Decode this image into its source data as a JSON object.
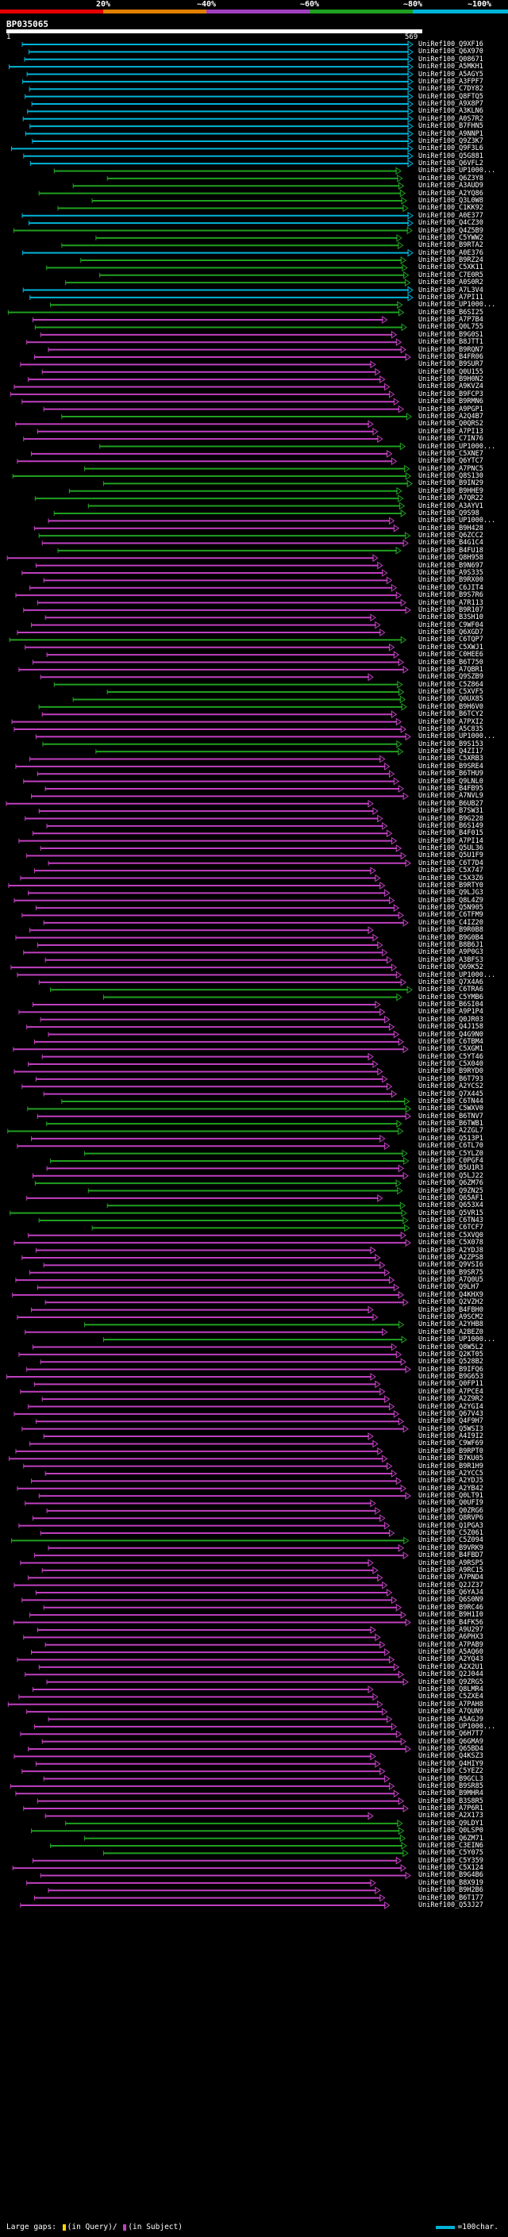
{
  "scale": {
    "labels": [
      "20%",
      "~40%",
      "~60%",
      "~80%",
      "~100%"
    ],
    "colors": [
      "#e60000",
      "#e08000",
      "#a040c0",
      "#20a020",
      "#00b4d8"
    ]
  },
  "query": {
    "id": "BP035065",
    "start": "1",
    "end": "569"
  },
  "colors": {
    "cyan": "#00b4d8",
    "green": "#20a020",
    "magenta": "#c040c0"
  },
  "hits": [
    {
      "l": "UniRef100_Q9XF16",
      "c": "c"
    },
    {
      "l": "UniRef100_Q6X970",
      "c": "c"
    },
    {
      "l": "UniRef100_Q08671",
      "c": "c"
    },
    {
      "l": "UniRef100_A5MKH1",
      "c": "c"
    },
    {
      "l": "UniRef100_A5AGY5",
      "c": "c"
    },
    {
      "l": "UniRef100_A3FPF7",
      "c": "c"
    },
    {
      "l": "UniRef100_C7DY82",
      "c": "c"
    },
    {
      "l": "UniRef100_Q8FTQ5",
      "c": "c"
    },
    {
      "l": "UniRef100_A9X8P7",
      "c": "c"
    },
    {
      "l": "UniRef100_A3KLN6",
      "c": "c"
    },
    {
      "l": "UniRef100_A0S7R2",
      "c": "c"
    },
    {
      "l": "UniRef100_B7FHN5",
      "c": "c"
    },
    {
      "l": "UniRef100_A9NNP1",
      "c": "c"
    },
    {
      "l": "UniRef100_Q9Z3K7",
      "c": "c"
    },
    {
      "l": "UniRef100_Q9F3L6",
      "c": "c"
    },
    {
      "l": "UniRef100_Q5G881",
      "c": "c"
    },
    {
      "l": "UniRef100_Q6VFL2",
      "c": "c"
    },
    {
      "l": "UniRef100_UP1000...",
      "c": "g"
    },
    {
      "l": "UniRef100_Q6Z3Y8",
      "c": "g"
    },
    {
      "l": "UniRef100_A3AUD9",
      "c": "g"
    },
    {
      "l": "UniRef100_A2YQ86",
      "c": "g"
    },
    {
      "l": "UniRef100_Q3L0W8",
      "c": "g"
    },
    {
      "l": "UniRef100_C1KK92",
      "c": "g"
    },
    {
      "l": "UniRef100_A0E377",
      "c": "c"
    },
    {
      "l": "UniRef100_Q4CZ30",
      "c": "c"
    },
    {
      "l": "UniRef100_Q4Z5B9",
      "c": "g"
    },
    {
      "l": "UniRef100_C5YWW2",
      "c": "g"
    },
    {
      "l": "UniRef100_B9RTA2",
      "c": "g"
    },
    {
      "l": "UniRef100_A0E376",
      "c": "c"
    },
    {
      "l": "UniRef100_B9RZ24",
      "c": "g"
    },
    {
      "l": "UniRef100_C5XK11",
      "c": "g"
    },
    {
      "l": "UniRef100_C7E0R5",
      "c": "g"
    },
    {
      "l": "UniRef100_A0S0R2",
      "c": "g"
    },
    {
      "l": "UniRef100_A7L3V4",
      "c": "c"
    },
    {
      "l": "UniRef100_A7PI11",
      "c": "c"
    },
    {
      "l": "UniRef100_UP1000...",
      "c": "g"
    },
    {
      "l": "UniRef100_B6SI25",
      "c": "g"
    },
    {
      "l": "UniRef100_A7P7B4",
      "c": "m"
    },
    {
      "l": "UniRef100_Q0L755",
      "c": "g"
    },
    {
      "l": "UniRef100_B9G0S1",
      "c": "m"
    },
    {
      "l": "UniRef100_B8JTT1",
      "c": "m"
    },
    {
      "l": "UniRef100_B9RQN7",
      "c": "m"
    },
    {
      "l": "UniRef100_B4FR06",
      "c": "m"
    },
    {
      "l": "UniRef100_B9SUR7",
      "c": "m"
    },
    {
      "l": "UniRef100_Q0U155",
      "c": "m"
    },
    {
      "l": "UniRef100_B9H0N2",
      "c": "m"
    },
    {
      "l": "UniRef100_A9KVZ4",
      "c": "m"
    },
    {
      "l": "UniRef100_B9FCP3",
      "c": "m"
    },
    {
      "l": "UniRef100_B9RMN6",
      "c": "m"
    },
    {
      "l": "UniRef100_A9PGP1",
      "c": "m"
    },
    {
      "l": "UniRef100_A2Q4B7",
      "c": "g"
    },
    {
      "l": "UniRef100_Q0QRS2",
      "c": "m"
    },
    {
      "l": "UniRef100_A7PI13",
      "c": "m"
    },
    {
      "l": "UniRef100_C7IN76",
      "c": "m"
    },
    {
      "l": "UniRef100_UP1000...",
      "c": "g"
    },
    {
      "l": "UniRef100_C5XNE7",
      "c": "m"
    },
    {
      "l": "UniRef100_Q6YTC7",
      "c": "m"
    },
    {
      "l": "UniRef100_A7PNC5",
      "c": "g"
    },
    {
      "l": "UniRef100_Q8S130",
      "c": "g"
    },
    {
      "l": "UniRef100_B9IN29",
      "c": "g"
    },
    {
      "l": "UniRef100_B9HHE9",
      "c": "g"
    },
    {
      "l": "UniRef100_A7QR22",
      "c": "g"
    },
    {
      "l": "UniRef100_A3AYV1",
      "c": "g"
    },
    {
      "l": "UniRef100_Q9S98",
      "c": "g"
    },
    {
      "l": "UniRef100_UP1000...",
      "c": "m"
    },
    {
      "l": "UniRef100_B9H428",
      "c": "m"
    },
    {
      "l": "UniRef100_Q6ZCC2",
      "c": "g"
    },
    {
      "l": "UniRef100_B4G1C4",
      "c": "m"
    },
    {
      "l": "UniRef100_B4FU18",
      "c": "g"
    },
    {
      "l": "UniRef100_Q8H958",
      "c": "m"
    },
    {
      "l": "UniRef100_B9N697",
      "c": "m"
    },
    {
      "l": "UniRef100_A9S335",
      "c": "m"
    },
    {
      "l": "UniRef100_B9RX00",
      "c": "m"
    },
    {
      "l": "UniRef100_C6JIT4",
      "c": "m"
    },
    {
      "l": "UniRef100_B9S7R6",
      "c": "m"
    },
    {
      "l": "UniRef100_A7R113",
      "c": "m"
    },
    {
      "l": "UniRef100_B9R107",
      "c": "m"
    },
    {
      "l": "UniRef100_B3SH10",
      "c": "m"
    },
    {
      "l": "UniRef100_C9WF04",
      "c": "m"
    },
    {
      "l": "UniRef100_Q6XGD7",
      "c": "m"
    },
    {
      "l": "UniRef100_C6TQP7",
      "c": "g"
    },
    {
      "l": "UniRef100_C5XWJ1",
      "c": "m"
    },
    {
      "l": "UniRef100_C0HEE6",
      "c": "m"
    },
    {
      "l": "UniRef100_B6T750",
      "c": "m"
    },
    {
      "l": "UniRef100_A7QBR1",
      "c": "m"
    },
    {
      "l": "UniRef100_Q9SZB9",
      "c": "m"
    },
    {
      "l": "UniRef100_C5Z864",
      "c": "g"
    },
    {
      "l": "UniRef100_C5XVF5",
      "c": "g"
    },
    {
      "l": "UniRef100_Q0UX85",
      "c": "g"
    },
    {
      "l": "UniRef100_B9H6V0",
      "c": "g"
    },
    {
      "l": "UniRef100_B6TCY2",
      "c": "m"
    },
    {
      "l": "UniRef100_A7PXI2",
      "c": "m"
    },
    {
      "l": "UniRef100_A5C835",
      "c": "m"
    },
    {
      "l": "UniRef100_UP1000...",
      "c": "m"
    },
    {
      "l": "UniRef100_B9S153",
      "c": "g"
    },
    {
      "l": "UniRef100_Q4ZI17",
      "c": "g"
    },
    {
      "l": "UniRef100_C5XRB3",
      "c": "m"
    },
    {
      "l": "UniRef100_B9SRE4",
      "c": "m"
    },
    {
      "l": "UniRef100_B6THU9",
      "c": "m"
    },
    {
      "l": "UniRef100_Q9LNL0",
      "c": "m"
    },
    {
      "l": "UniRef100_B4FB95",
      "c": "m"
    },
    {
      "l": "UniRef100_A7NVL9",
      "c": "m"
    },
    {
      "l": "UniRef100_B6UB27",
      "c": "m"
    },
    {
      "l": "UniRef100_B7SW31",
      "c": "m"
    },
    {
      "l": "UniRef100_B9G228",
      "c": "m"
    },
    {
      "l": "UniRef100_B6S149",
      "c": "m"
    },
    {
      "l": "UniRef100_B4F015",
      "c": "m"
    },
    {
      "l": "UniRef100_A7PI14",
      "c": "m"
    },
    {
      "l": "UniRef100_Q5UL36",
      "c": "m"
    },
    {
      "l": "UniRef100_Q5U1F9",
      "c": "m"
    },
    {
      "l": "UniRef100_C6T7D4",
      "c": "m"
    },
    {
      "l": "UniRef100_C5X747",
      "c": "m"
    },
    {
      "l": "UniRef100_C5X3Z6",
      "c": "m"
    },
    {
      "l": "UniRef100_B9RTY0",
      "c": "m"
    },
    {
      "l": "UniRef100_Q9LJG3",
      "c": "m"
    },
    {
      "l": "UniRef100_Q8L4Z9",
      "c": "m"
    },
    {
      "l": "UniRef100_Q5N905",
      "c": "m"
    },
    {
      "l": "UniRef100_C6TFM9",
      "c": "m"
    },
    {
      "l": "UniRef100_C4IZ20",
      "c": "m"
    },
    {
      "l": "UniRef100_B9R0B8",
      "c": "m"
    },
    {
      "l": "UniRef100_B9G0B4",
      "c": "m"
    },
    {
      "l": "UniRef100_B8B6J1",
      "c": "m"
    },
    {
      "l": "UniRef100_A9P0G3",
      "c": "m"
    },
    {
      "l": "UniRef100_A3BFS3",
      "c": "m"
    },
    {
      "l": "UniRef100_Q69K52",
      "c": "m"
    },
    {
      "l": "UniRef100_UP1000...",
      "c": "m"
    },
    {
      "l": "UniRef100_Q7X4A6",
      "c": "m"
    },
    {
      "l": "UniRef100_C6TRA6",
      "c": "g"
    },
    {
      "l": "UniRef100_C5YMB6",
      "c": "g"
    },
    {
      "l": "UniRef100_B6SI04",
      "c": "m"
    },
    {
      "l": "UniRef100_A9P1P4",
      "c": "m"
    },
    {
      "l": "UniRef100_Q0JR03",
      "c": "m"
    },
    {
      "l": "UniRef100_Q4J158",
      "c": "m"
    },
    {
      "l": "UniRef100_Q4G9N0",
      "c": "m"
    },
    {
      "l": "UniRef100_C6TBM4",
      "c": "m"
    },
    {
      "l": "UniRef100_C5XGM1",
      "c": "m"
    },
    {
      "l": "UniRef100_C5YT46",
      "c": "m"
    },
    {
      "l": "UniRef100_C5X040",
      "c": "m"
    },
    {
      "l": "UniRef100_B9RYD0",
      "c": "m"
    },
    {
      "l": "UniRef100_B6T793",
      "c": "m"
    },
    {
      "l": "UniRef100_A2YCS2",
      "c": "m"
    },
    {
      "l": "UniRef100_Q7X445",
      "c": "m"
    },
    {
      "l": "UniRef100_C6TN44",
      "c": "g"
    },
    {
      "l": "UniRef100_C5WXV0",
      "c": "g"
    },
    {
      "l": "UniRef100_B6TNV7",
      "c": "m"
    },
    {
      "l": "UniRef100_B6TWB1",
      "c": "g"
    },
    {
      "l": "UniRef100_A2ZGL7",
      "c": "g"
    },
    {
      "l": "UniRef100_Q513P1",
      "c": "m"
    },
    {
      "l": "UniRef100_C6TL70",
      "c": "m"
    },
    {
      "l": "UniRef100_C5YLZ0",
      "c": "g"
    },
    {
      "l": "UniRef100_C0PGF4",
      "c": "g"
    },
    {
      "l": "UniRef100_B5U1R3",
      "c": "m"
    },
    {
      "l": "UniRef100_Q5LJ22",
      "c": "m"
    },
    {
      "l": "UniRef100_Q6ZM76",
      "c": "g"
    },
    {
      "l": "UniRef100_Q9ZN25",
      "c": "g"
    },
    {
      "l": "UniRef100_Q65AF1",
      "c": "m"
    },
    {
      "l": "UniRef100_Q653X4",
      "c": "g"
    },
    {
      "l": "UniRef100_Q5VR15",
      "c": "g"
    },
    {
      "l": "UniRef100_C6TN43",
      "c": "g"
    },
    {
      "l": "UniRef100_C6TCF7",
      "c": "g"
    },
    {
      "l": "UniRef100_C5XVQ0",
      "c": "m"
    },
    {
      "l": "UniRef100_C5X078",
      "c": "m"
    },
    {
      "l": "UniRef100_A2YDJ8",
      "c": "m"
    },
    {
      "l": "UniRef100_A2ZPS8",
      "c": "m"
    },
    {
      "l": "UniRef100_Q9VSI6",
      "c": "m"
    },
    {
      "l": "UniRef100_B9SR75",
      "c": "m"
    },
    {
      "l": "UniRef100_A7Q0U5",
      "c": "m"
    },
    {
      "l": "UniRef100_Q9LH7",
      "c": "m"
    },
    {
      "l": "UniRef100_Q4KHX9",
      "c": "m"
    },
    {
      "l": "UniRef100_Q2VZH2",
      "c": "m"
    },
    {
      "l": "UniRef100_B4FBH0",
      "c": "m"
    },
    {
      "l": "UniRef100_A9SCM2",
      "c": "m"
    },
    {
      "l": "UniRef100_A2YHB8",
      "c": "g"
    },
    {
      "l": "UniRef100_A2BEZ0",
      "c": "m"
    },
    {
      "l": "UniRef100_UP1000...",
      "c": "g"
    },
    {
      "l": "UniRef100_Q8W5L2",
      "c": "m"
    },
    {
      "l": "UniRef100_Q2KT05",
      "c": "m"
    },
    {
      "l": "UniRef100_Q528B2",
      "c": "m"
    },
    {
      "l": "UniRef100_B9IFQ6",
      "c": "m"
    },
    {
      "l": "UniRef100_B9G653",
      "c": "m"
    },
    {
      "l": "UniRef100_Q0FP11",
      "c": "m"
    },
    {
      "l": "UniRef100_A7PCE4",
      "c": "m"
    },
    {
      "l": "UniRef100_A2Z9R2",
      "c": "m"
    },
    {
      "l": "UniRef100_A2YGI4",
      "c": "m"
    },
    {
      "l": "UniRef100_Q67V43",
      "c": "m"
    },
    {
      "l": "UniRef100_Q4F9H7",
      "c": "m"
    },
    {
      "l": "UniRef100_Q5WSI3",
      "c": "m"
    },
    {
      "l": "UniRef100_A4I9I2",
      "c": "m"
    },
    {
      "l": "UniRef100_C9WF69",
      "c": "m"
    },
    {
      "l": "UniRef100_B9RPT0",
      "c": "m"
    },
    {
      "l": "UniRef100_B7KU05",
      "c": "m"
    },
    {
      "l": "UniRef100_B9R1H9",
      "c": "m"
    },
    {
      "l": "UniRef100_A2YCC5",
      "c": "m"
    },
    {
      "l": "UniRef100_A2YDJ5",
      "c": "m"
    },
    {
      "l": "UniRef100_A2YB42",
      "c": "m"
    },
    {
      "l": "UniRef100_Q0LT91",
      "c": "m"
    },
    {
      "l": "UniRef100_Q0UFI9",
      "c": "m"
    },
    {
      "l": "UniRef100_Q0ZRG6",
      "c": "m"
    },
    {
      "l": "UniRef100_Q8RVP6",
      "c": "m"
    },
    {
      "l": "UniRef100_Q1PGA3",
      "c": "m"
    },
    {
      "l": "UniRef100_C5Z061",
      "c": "m"
    },
    {
      "l": "UniRef100_C5Z094",
      "c": "g"
    },
    {
      "l": "UniRef100_B9VRK9",
      "c": "m"
    },
    {
      "l": "UniRef100_B4FBD7",
      "c": "m"
    },
    {
      "l": "UniRef100_A9RSP5",
      "c": "m"
    },
    {
      "l": "UniRef100_A9RC15",
      "c": "m"
    },
    {
      "l": "UniRef100_A7PND4",
      "c": "m"
    },
    {
      "l": "UniRef100_Q2JZ37",
      "c": "m"
    },
    {
      "l": "UniRef100_Q6YAJ4",
      "c": "m"
    },
    {
      "l": "UniRef100_Q6S0N9",
      "c": "m"
    },
    {
      "l": "UniRef100_B9RC46",
      "c": "m"
    },
    {
      "l": "UniRef100_B9H1I0",
      "c": "m"
    },
    {
      "l": "UniRef100_B4FK56",
      "c": "m"
    },
    {
      "l": "UniRef100_A9U297",
      "c": "m"
    },
    {
      "l": "UniRef100_A6PHX3",
      "c": "m"
    },
    {
      "l": "UniRef100_A7PAB9",
      "c": "m"
    },
    {
      "l": "UniRef100_A5AQ60",
      "c": "m"
    },
    {
      "l": "UniRef100_A2YQ43",
      "c": "m"
    },
    {
      "l": "UniRef100_A2X2U1",
      "c": "m"
    },
    {
      "l": "UniRef100_Q2J044",
      "c": "m"
    },
    {
      "l": "UniRef100_Q9ZRG5",
      "c": "m"
    },
    {
      "l": "UniRef100_Q8LMR4",
      "c": "m"
    },
    {
      "l": "UniRef100_C5ZXE4",
      "c": "m"
    },
    {
      "l": "UniRef100_A7PAH8",
      "c": "m"
    },
    {
      "l": "UniRef100_A7QUN9",
      "c": "m"
    },
    {
      "l": "UniRef100_A5AGJ9",
      "c": "m"
    },
    {
      "l": "UniRef100_UP1000...",
      "c": "m"
    },
    {
      "l": "UniRef100_Q6H7T7",
      "c": "m"
    },
    {
      "l": "UniRef100_Q6GMA9",
      "c": "m"
    },
    {
      "l": "UniRef100_Q65BD4",
      "c": "m"
    },
    {
      "l": "UniRef100_Q4KSZ3",
      "c": "m"
    },
    {
      "l": "UniRef100_Q4HIY9",
      "c": "m"
    },
    {
      "l": "UniRef100_C5YEZ2",
      "c": "m"
    },
    {
      "l": "UniRef100_B9GCL3",
      "c": "m"
    },
    {
      "l": "UniRef100_B9SR85",
      "c": "m"
    },
    {
      "l": "UniRef100_B9MHR4",
      "c": "m"
    },
    {
      "l": "UniRef100_B3S8R5",
      "c": "m"
    },
    {
      "l": "UniRef100_A7P6R1",
      "c": "m"
    },
    {
      "l": "UniRef100_A2X173",
      "c": "m"
    },
    {
      "l": "UniRef100_Q9LDY1",
      "c": "g"
    },
    {
      "l": "UniRef100_Q0LSP0",
      "c": "g"
    },
    {
      "l": "UniRef100_Q6ZM71",
      "c": "g"
    },
    {
      "l": "UniRef100_C3EIN6",
      "c": "g"
    },
    {
      "l": "UniRef100_C5Y075",
      "c": "g"
    },
    {
      "l": "UniRef100_C5Y359",
      "c": "m"
    },
    {
      "l": "UniRef100_C5X124",
      "c": "m"
    },
    {
      "l": "UniRef100_B9G4B6",
      "c": "m"
    },
    {
      "l": "UniRef100_B8X919",
      "c": "m"
    },
    {
      "l": "UniRef100_B9H2B6",
      "c": "m"
    },
    {
      "l": "UniRef100_B6T177",
      "c": "m"
    },
    {
      "l": "UniRef100_Q53J27",
      "c": "m"
    }
  ],
  "legend": {
    "prefix": "Large gaps:",
    "query_part": "(in Query)/",
    "subject_part": "(in Subject)",
    "scale_text": "=100char."
  }
}
